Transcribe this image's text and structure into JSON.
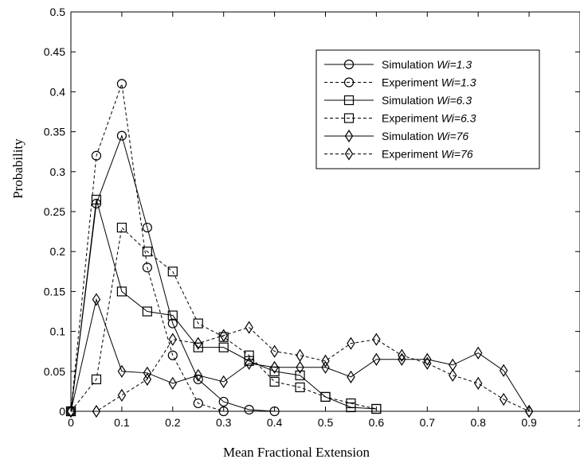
{
  "chart_data": {
    "type": "line",
    "title": "",
    "xlabel": "Mean Fractional Extension",
    "ylabel": "Probability",
    "xlim": [
      0,
      1
    ],
    "ylim": [
      0,
      0.5
    ],
    "x_ticks": [
      "0",
      "0.1",
      "0.2",
      "0.3",
      "0.4",
      "0.5",
      "0.6",
      "0.7",
      "0.8",
      "0.9",
      "1"
    ],
    "y_ticks": [
      "0",
      "0.05",
      "0.1",
      "0.15",
      "0.2",
      "0.25",
      "0.3",
      "0.35",
      "0.4",
      "0.45",
      "0.5"
    ],
    "grid": false,
    "legend_position": "top-right",
    "series": [
      {
        "name": "Simulation Wi=1.3",
        "name_prefix": "Simulation ",
        "name_wi": "Wi=1.3",
        "marker": "circle",
        "dash": "solid",
        "x": [
          0,
          0.05,
          0.1,
          0.15,
          0.2,
          0.25,
          0.3,
          0.35,
          0.4
        ],
        "y": [
          0,
          0.26,
          0.345,
          0.23,
          0.11,
          0.04,
          0.012,
          0.002,
          0
        ]
      },
      {
        "name": "Experiment Wi=1.3",
        "name_prefix": "Experiment ",
        "name_wi": "Wi=1.3",
        "marker": "circle",
        "dash": "dashed",
        "x": [
          0,
          0.05,
          0.1,
          0.15,
          0.2,
          0.25,
          0.3
        ],
        "y": [
          0,
          0.32,
          0.41,
          0.18,
          0.07,
          0.01,
          0
        ]
      },
      {
        "name": "Simulation Wi=6.3",
        "name_prefix": "Simulation ",
        "name_wi": "Wi=6.3",
        "marker": "square",
        "dash": "solid",
        "x": [
          0,
          0.05,
          0.1,
          0.15,
          0.2,
          0.25,
          0.3,
          0.35,
          0.4,
          0.45,
          0.5,
          0.55,
          0.6
        ],
        "y": [
          0,
          0.265,
          0.15,
          0.125,
          0.12,
          0.08,
          0.08,
          0.063,
          0.05,
          0.045,
          0.018,
          0.005,
          0.003
        ]
      },
      {
        "name": "Experiment Wi=6.3",
        "name_prefix": "Experiment ",
        "name_wi": "Wi=6.3",
        "marker": "square",
        "dash": "dashed",
        "x": [
          0,
          0.05,
          0.1,
          0.15,
          0.2,
          0.25,
          0.3,
          0.35,
          0.4,
          0.45,
          0.5,
          0.55,
          0.6
        ],
        "y": [
          0,
          0.04,
          0.23,
          0.2,
          0.175,
          0.11,
          0.093,
          0.07,
          0.037,
          0.03,
          0.018,
          0.01,
          0.003
        ]
      },
      {
        "name": "Simulation Wi=76",
        "name_prefix": "Simulation ",
        "name_wi": "Wi=76",
        "marker": "diamond",
        "dash": "solid",
        "x": [
          0,
          0.05,
          0.1,
          0.15,
          0.2,
          0.25,
          0.3,
          0.35,
          0.4,
          0.45,
          0.5,
          0.55,
          0.6,
          0.65,
          0.7,
          0.75,
          0.8,
          0.85,
          0.9
        ],
        "y": [
          0,
          0.14,
          0.05,
          0.048,
          0.035,
          0.045,
          0.037,
          0.06,
          0.055,
          0.055,
          0.055,
          0.043,
          0.065,
          0.065,
          0.065,
          0.058,
          0.073,
          0.051,
          0
        ]
      },
      {
        "name": "Experiment Wi=76",
        "name_prefix": "Experiment ",
        "name_wi": "Wi=76",
        "marker": "diamond",
        "dash": "dashed",
        "x": [
          0,
          0.05,
          0.1,
          0.15,
          0.2,
          0.25,
          0.3,
          0.35,
          0.4,
          0.45,
          0.5,
          0.55,
          0.6,
          0.65,
          0.7,
          0.75,
          0.8,
          0.85,
          0.9
        ],
        "y": [
          0,
          0,
          0.02,
          0.04,
          0.09,
          0.085,
          0.095,
          0.105,
          0.075,
          0.07,
          0.063,
          0.085,
          0.09,
          0.07,
          0.06,
          0.045,
          0.035,
          0.015,
          0
        ]
      }
    ]
  }
}
